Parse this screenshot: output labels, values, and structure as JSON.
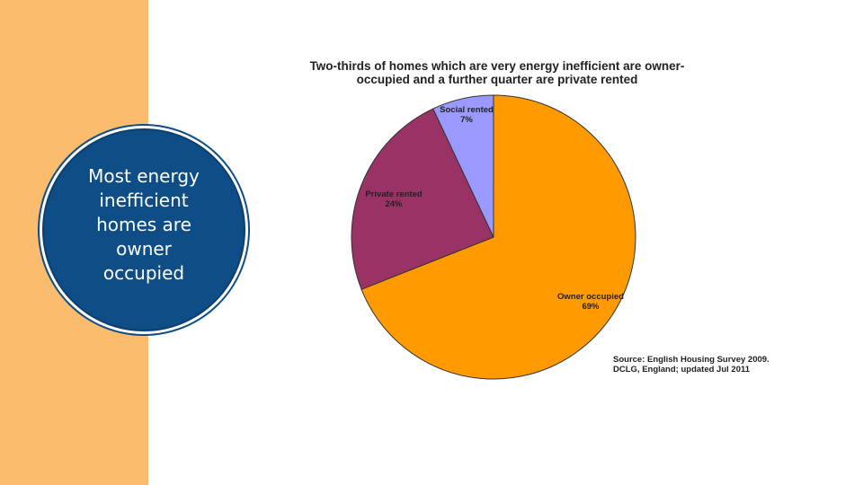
{
  "slide": {
    "callout": "Most energy inefficient homes are owner occupied"
  },
  "chart_data": {
    "type": "pie",
    "title_lines": [
      "Two-thirds of homes which are very energy inefficient are owner-",
      "occupied and a further quarter are private rented"
    ],
    "slices": [
      {
        "label": "Owner occupied",
        "value": 69,
        "value_label": "69%",
        "color": "#ff9a00"
      },
      {
        "label": "Private rented",
        "value": 24,
        "value_label": "24%",
        "color": "#993366"
      },
      {
        "label": "Social rented",
        "value": 7,
        "value_label": "7%",
        "color": "#9999ff"
      }
    ],
    "source_lines": [
      "Source: English Housing Survey 2009.",
      "DCLG, England; updated Jul 2011"
    ]
  },
  "colors": {
    "side_band": "#fbbc6e",
    "badge": "#0e4d86"
  }
}
